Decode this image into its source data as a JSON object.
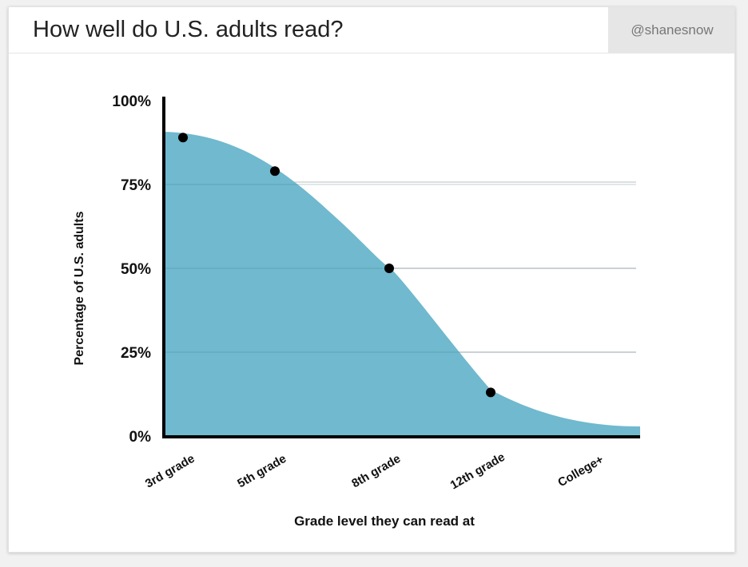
{
  "header": {
    "title": "How well do U.S. adults read?",
    "handle": "@shanesnow"
  },
  "chart_data": {
    "type": "area",
    "title": "How well do U.S. adults read?",
    "xlabel": "Grade level they can read at",
    "ylabel": "Percentage of U.S. adults",
    "categories": [
      "3rd grade",
      "5th grade",
      "8th grade",
      "12th grade",
      "College+"
    ],
    "points": [
      {
        "x": "3rd grade",
        "y": 89
      },
      {
        "x": "5th grade",
        "y": 79
      },
      {
        "x": "8th grade",
        "y": 50
      },
      {
        "x": "12th grade",
        "y": 13
      }
    ],
    "yticks": [
      "0%",
      "25%",
      "50%",
      "75%",
      "100%"
    ],
    "ylim": [
      0,
      100
    ],
    "grid": true,
    "colors": {
      "fill": "#70b9ce",
      "marker": "#000000",
      "axis": "#000000",
      "grid": "#bdbdbd"
    }
  }
}
